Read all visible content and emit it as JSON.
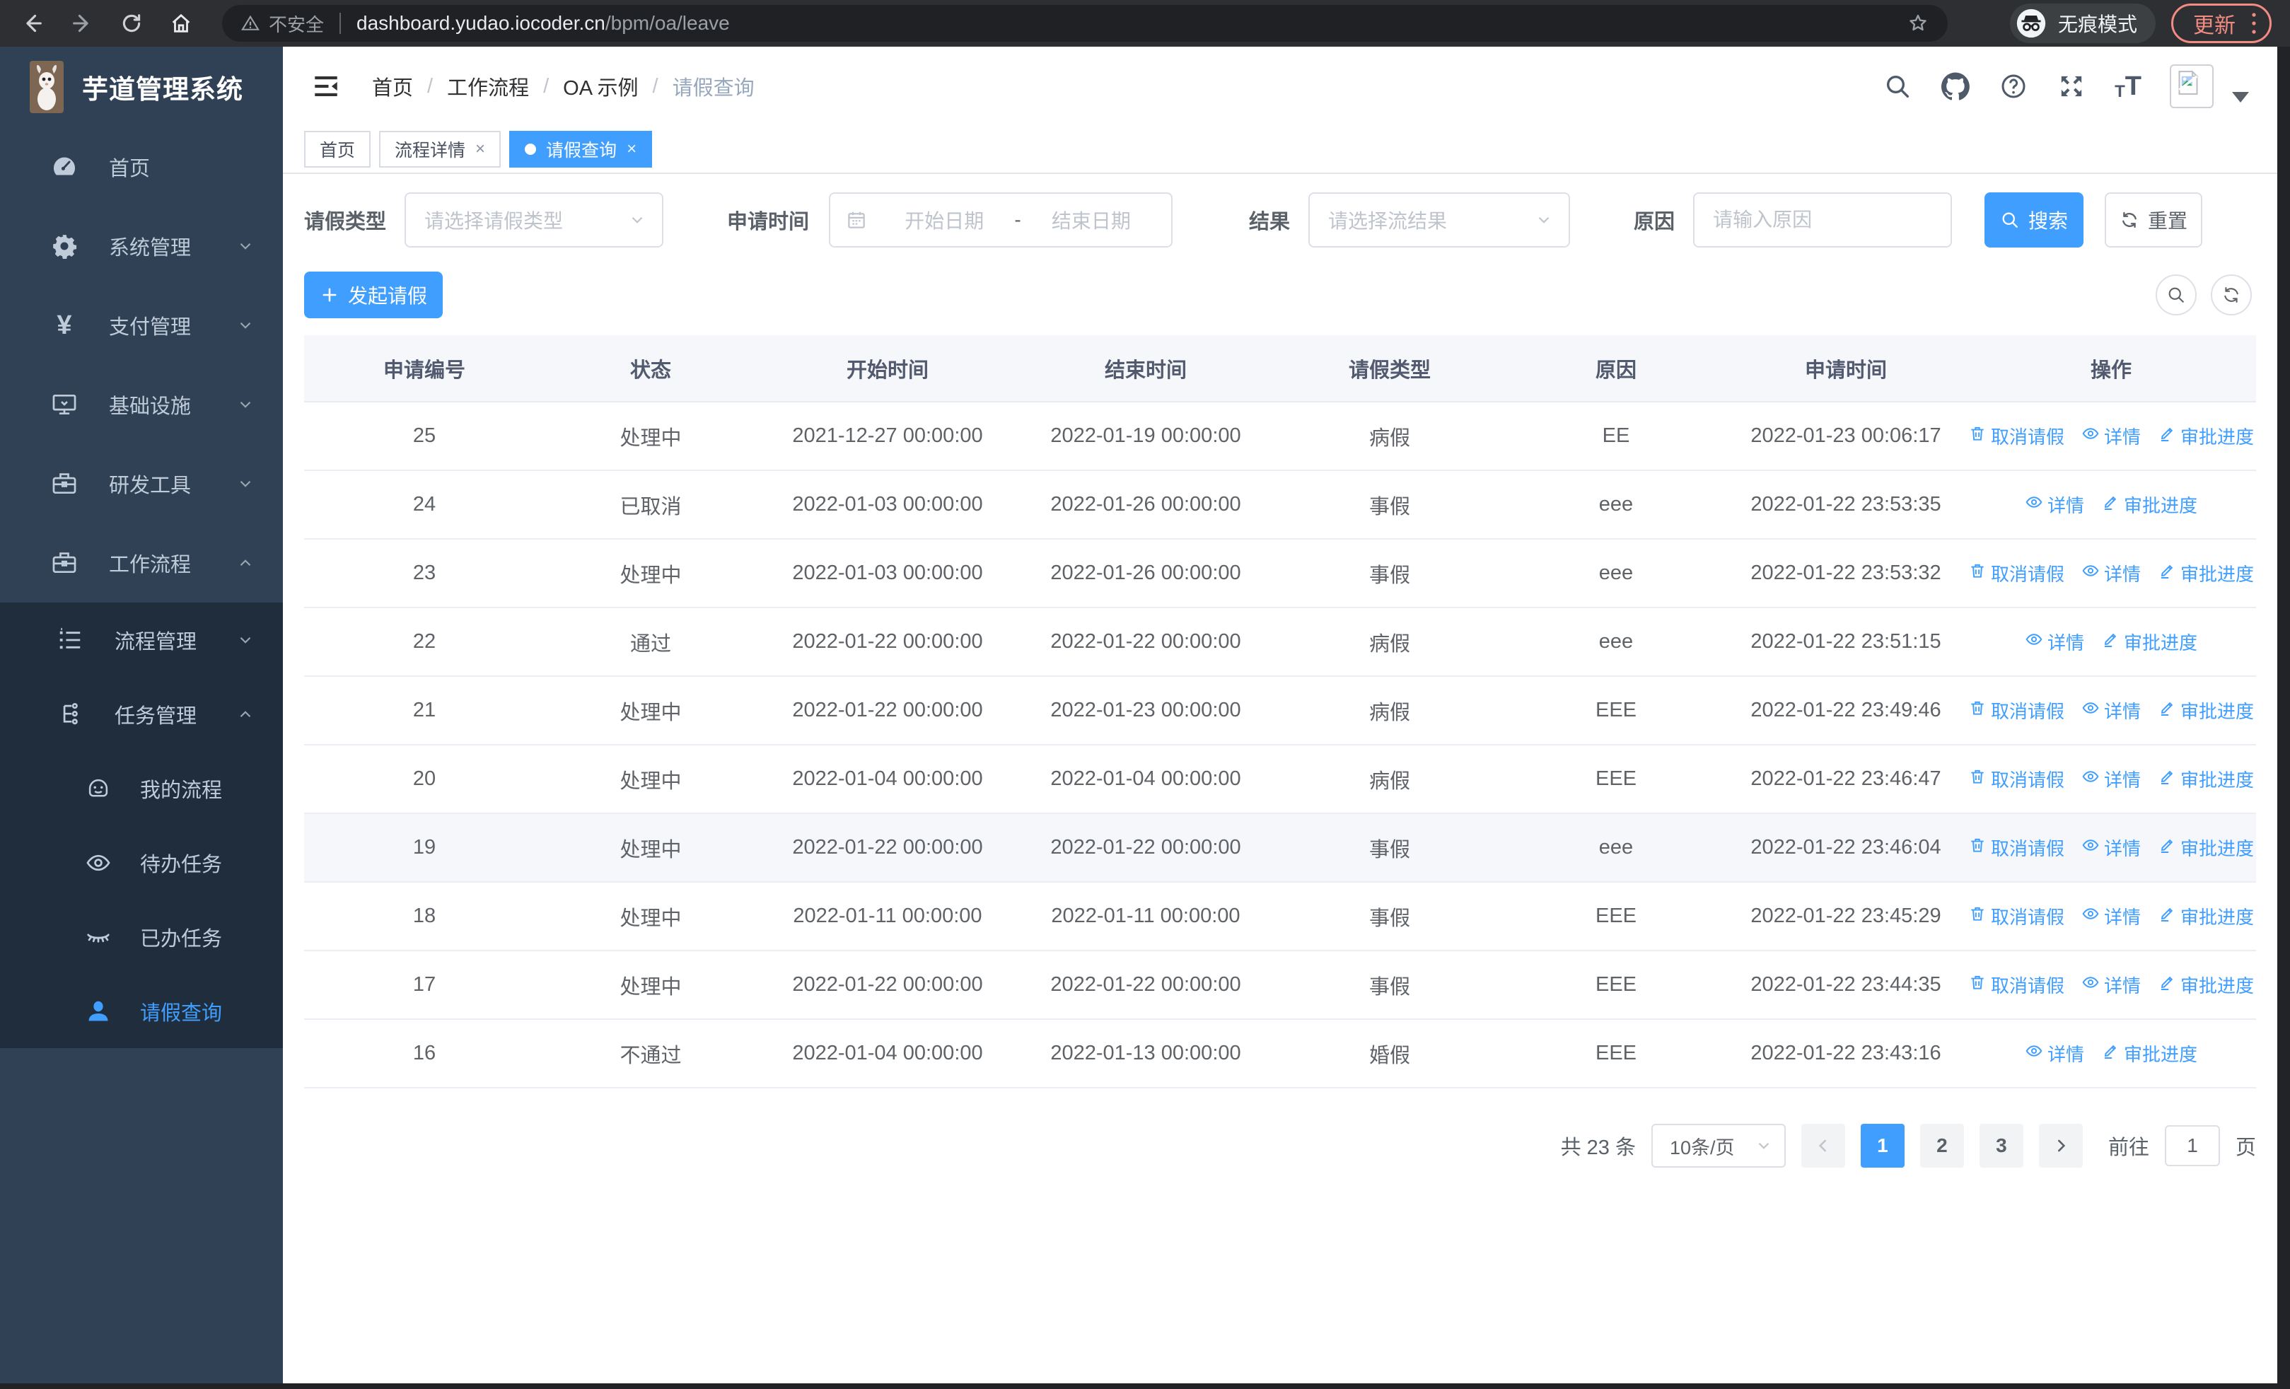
{
  "browser": {
    "security_label": "不安全",
    "url_host": "dashboard.yudao.iocoder.cn",
    "url_path": "/bpm/oa/leave",
    "incognito_label": "无痕模式",
    "update_label": "更新"
  },
  "sidebar": {
    "app_title": "芋道管理系统",
    "items": [
      {
        "label": "首页",
        "icon": "dashboard-icon",
        "arrow": "",
        "active": false
      },
      {
        "label": "系统管理",
        "icon": "gear-icon",
        "arrow": "down",
        "active": false
      },
      {
        "label": "支付管理",
        "icon": "yen-icon",
        "arrow": "down",
        "active": false
      },
      {
        "label": "基础设施",
        "icon": "monitor-icon",
        "arrow": "down",
        "active": false
      },
      {
        "label": "研发工具",
        "icon": "toolbox-icon",
        "arrow": "down",
        "active": false
      },
      {
        "label": "工作流程",
        "icon": "briefcase-icon",
        "arrow": "up",
        "active": false
      }
    ],
    "submenu": [
      {
        "label": "流程管理",
        "icon": "list-tree-icon",
        "arrow": "down",
        "level": 1,
        "active": false
      },
      {
        "label": "任务管理",
        "icon": "org-tree-icon",
        "arrow": "up",
        "level": 1,
        "active": false
      },
      {
        "label": "我的流程",
        "icon": "robot-icon",
        "arrow": "",
        "level": 2,
        "active": false
      },
      {
        "label": "待办任务",
        "icon": "eye-open-icon",
        "arrow": "",
        "level": 2,
        "active": false
      },
      {
        "label": "已办任务",
        "icon": "eye-closed-icon",
        "arrow": "",
        "level": 2,
        "active": false
      },
      {
        "label": "请假查询",
        "icon": "user-icon",
        "arrow": "",
        "level": 2,
        "active": true
      }
    ]
  },
  "header": {
    "breadcrumb": [
      "首页",
      "工作流程",
      "OA 示例",
      "请假查询"
    ]
  },
  "tabs": [
    {
      "label": "首页",
      "closable": false,
      "active": false
    },
    {
      "label": "流程详情",
      "closable": true,
      "active": false
    },
    {
      "label": "请假查询",
      "closable": true,
      "active": true
    }
  ],
  "filters": {
    "leave_type_label": "请假类型",
    "leave_type_placeholder": "请选择请假类型",
    "apply_time_label": "申请时间",
    "date_start_placeholder": "开始日期",
    "date_separator": "-",
    "date_end_placeholder": "结束日期",
    "result_label": "结果",
    "result_placeholder": "请选择流结果",
    "reason_label": "原因",
    "reason_placeholder": "请输入原因",
    "search_label": "搜索",
    "reset_label": "重置"
  },
  "toolbar": {
    "create_label": "发起请假"
  },
  "table": {
    "columns": [
      "申请编号",
      "状态",
      "开始时间",
      "结束时间",
      "请假类型",
      "原因",
      "申请时间",
      "操作"
    ],
    "action_defs": {
      "cancel": {
        "label": "取消请假",
        "icon": "trash-icon"
      },
      "detail": {
        "label": "详情",
        "icon": "view-icon"
      },
      "progress": {
        "label": "审批进度",
        "icon": "edit-icon"
      }
    },
    "rows": [
      {
        "id": "25",
        "status": "处理中",
        "start": "2021-12-27 00:00:00",
        "end": "2022-01-19 00:00:00",
        "type": "病假",
        "reason": "EE",
        "apply_time": "2022-01-23 00:06:17",
        "actions": [
          "cancel",
          "detail",
          "progress"
        ],
        "highlight": false
      },
      {
        "id": "24",
        "status": "已取消",
        "start": "2022-01-03 00:00:00",
        "end": "2022-01-26 00:00:00",
        "type": "事假",
        "reason": "eee",
        "apply_time": "2022-01-22 23:53:35",
        "actions": [
          "detail",
          "progress"
        ],
        "highlight": false
      },
      {
        "id": "23",
        "status": "处理中",
        "start": "2022-01-03 00:00:00",
        "end": "2022-01-26 00:00:00",
        "type": "事假",
        "reason": "eee",
        "apply_time": "2022-01-22 23:53:32",
        "actions": [
          "cancel",
          "detail",
          "progress"
        ],
        "highlight": false
      },
      {
        "id": "22",
        "status": "通过",
        "start": "2022-01-22 00:00:00",
        "end": "2022-01-22 00:00:00",
        "type": "病假",
        "reason": "eee",
        "apply_time": "2022-01-22 23:51:15",
        "actions": [
          "detail",
          "progress"
        ],
        "highlight": false
      },
      {
        "id": "21",
        "status": "处理中",
        "start": "2022-01-22 00:00:00",
        "end": "2022-01-23 00:00:00",
        "type": "病假",
        "reason": "EEE",
        "apply_time": "2022-01-22 23:49:46",
        "actions": [
          "cancel",
          "detail",
          "progress"
        ],
        "highlight": false
      },
      {
        "id": "20",
        "status": "处理中",
        "start": "2022-01-04 00:00:00",
        "end": "2022-01-04 00:00:00",
        "type": "病假",
        "reason": "EEE",
        "apply_time": "2022-01-22 23:46:47",
        "actions": [
          "cancel",
          "detail",
          "progress"
        ],
        "highlight": false
      },
      {
        "id": "19",
        "status": "处理中",
        "start": "2022-01-22 00:00:00",
        "end": "2022-01-22 00:00:00",
        "type": "事假",
        "reason": "eee",
        "apply_time": "2022-01-22 23:46:04",
        "actions": [
          "cancel",
          "detail",
          "progress"
        ],
        "highlight": true
      },
      {
        "id": "18",
        "status": "处理中",
        "start": "2022-01-11 00:00:00",
        "end": "2022-01-11 00:00:00",
        "type": "事假",
        "reason": "EEE",
        "apply_time": "2022-01-22 23:45:29",
        "actions": [
          "cancel",
          "detail",
          "progress"
        ],
        "highlight": false
      },
      {
        "id": "17",
        "status": "处理中",
        "start": "2022-01-22 00:00:00",
        "end": "2022-01-22 00:00:00",
        "type": "事假",
        "reason": "EEE",
        "apply_time": "2022-01-22 23:44:35",
        "actions": [
          "cancel",
          "detail",
          "progress"
        ],
        "highlight": false
      },
      {
        "id": "16",
        "status": "不通过",
        "start": "2022-01-04 00:00:00",
        "end": "2022-01-13 00:00:00",
        "type": "婚假",
        "reason": "EEE",
        "apply_time": "2022-01-22 23:43:16",
        "actions": [
          "detail",
          "progress"
        ],
        "highlight": false
      }
    ]
  },
  "pagination": {
    "total_label": "共 23 条",
    "per_page": "10条/页",
    "pages": [
      "1",
      "2",
      "3"
    ],
    "current": "1",
    "goto_label": "前往",
    "goto_value": "1",
    "page_suffix": "页"
  }
}
